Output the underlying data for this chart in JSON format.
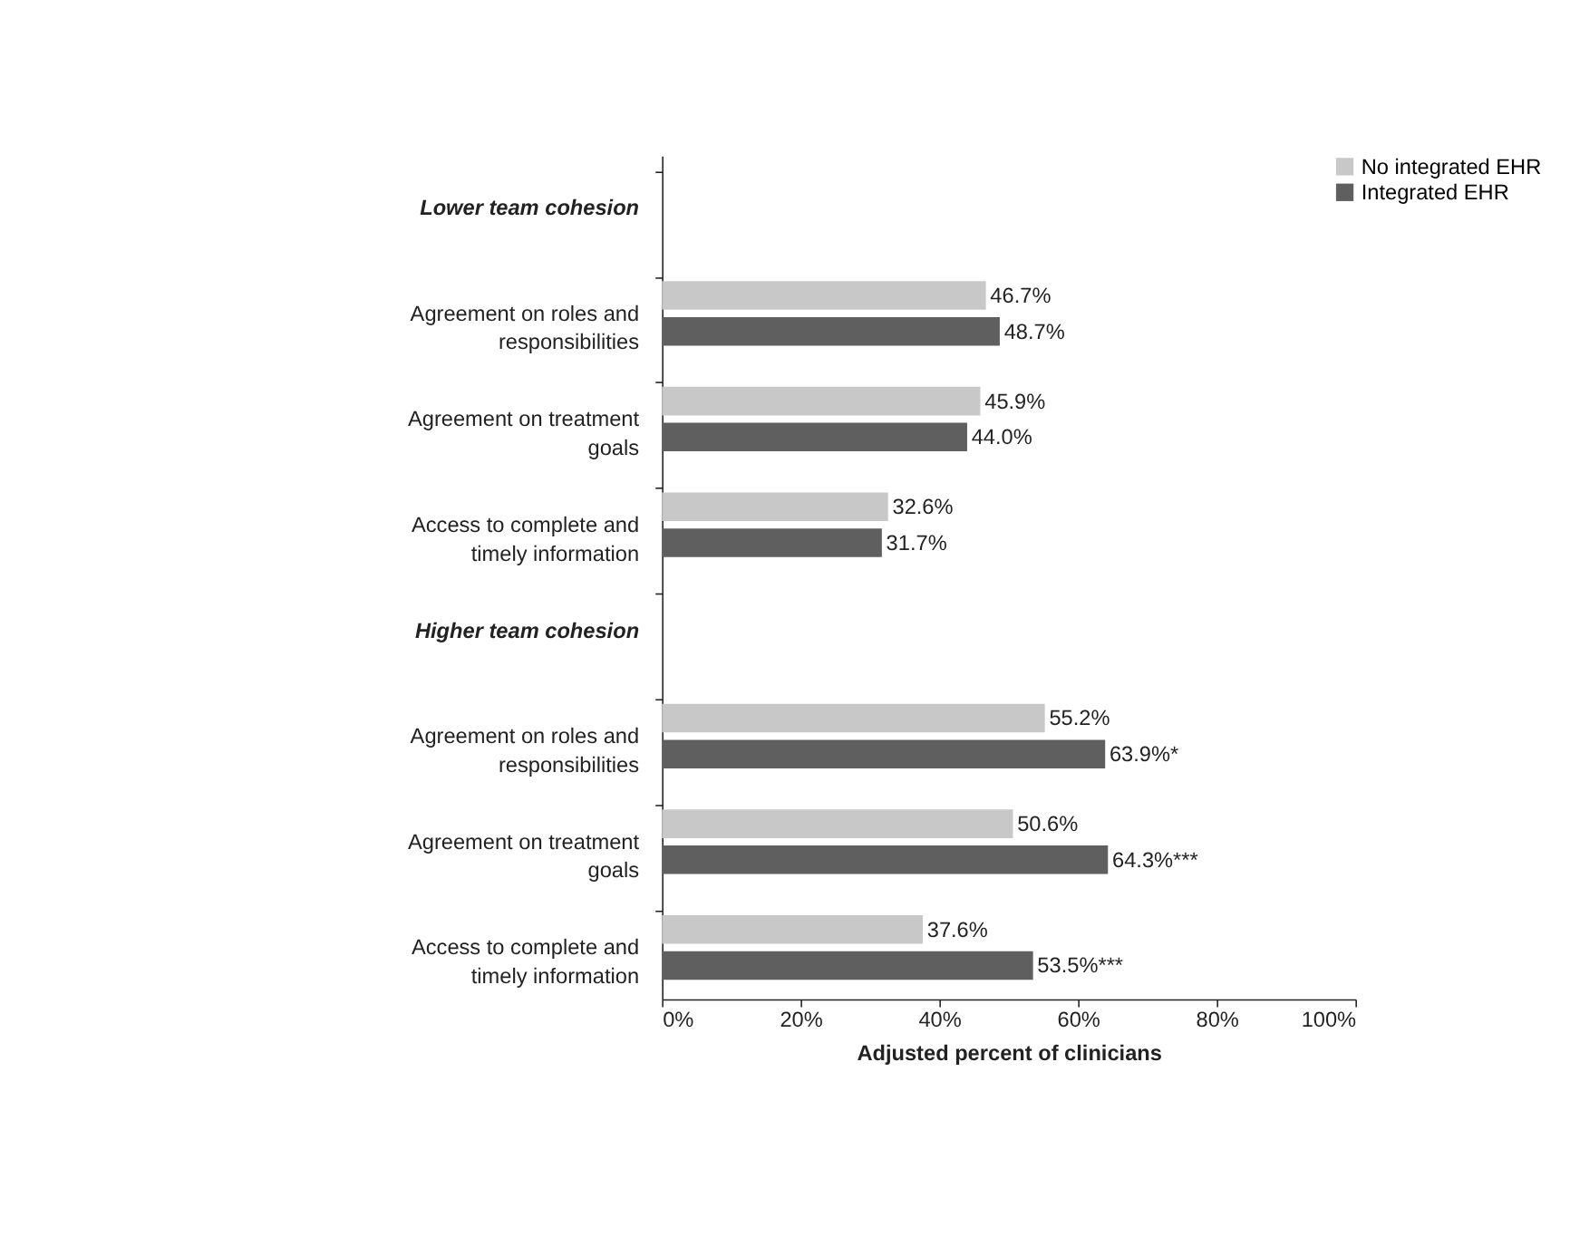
{
  "chart_data": {
    "type": "bar",
    "orientation": "horizontal",
    "categories": [
      "Lower team cohesion",
      "Agreement on roles and responsibilities",
      "Agreement on treatment goals",
      "Access to complete and timely information",
      "Higher team cohesion",
      "Agreement on roles and responsibilities",
      "Agreement on treatment goals",
      "Access to complete and timely information"
    ],
    "series": [
      {
        "name": "No integrated EHR",
        "color": "#c8c8c8",
        "values": [
          null,
          46.7,
          45.9,
          32.6,
          null,
          55.2,
          50.6,
          37.6
        ],
        "value_labels": [
          null,
          "46.7%",
          "45.9%",
          "32.6%",
          null,
          "55.2%",
          "50.6%",
          "37.6%"
        ]
      },
      {
        "name": "Integrated EHR",
        "color": "#5f5f5f",
        "values": [
          null,
          48.7,
          44.0,
          31.7,
          null,
          63.9,
          64.3,
          53.5
        ],
        "value_labels": [
          null,
          "48.7%",
          "44.0%",
          "31.7%",
          null,
          "63.9%*",
          "64.3%***",
          "53.5%***"
        ]
      }
    ],
    "xlim": [
      0,
      100
    ],
    "xticks": [
      {
        "value": 0,
        "label": "0%"
      },
      {
        "value": 20,
        "label": "20%"
      },
      {
        "value": 40,
        "label": "40%"
      },
      {
        "value": 60,
        "label": "60%"
      },
      {
        "value": 80,
        "label": "80%"
      },
      {
        "value": 100,
        "label": "100%"
      }
    ],
    "xlabel": "Adjusted percent of clinicians",
    "legend": "top right",
    "grid": false
  }
}
